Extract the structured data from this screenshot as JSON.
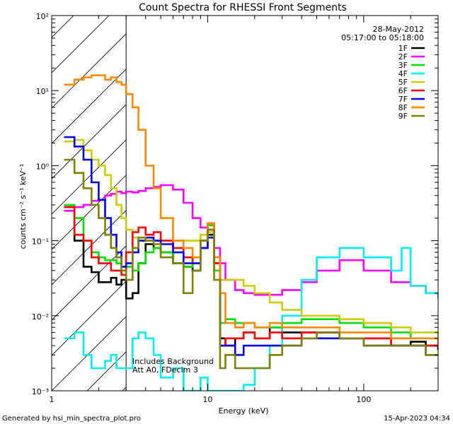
{
  "chart_data": {
    "type": "line",
    "title": "Count Spectra for RHESSI Front Segments",
    "xlabel": "Energy (keV)",
    "ylabel": "counts cm⁻² s⁻¹ keV⁻¹",
    "x_scale": "log",
    "y_scale": "log",
    "xlim": [
      1,
      300
    ],
    "ylim": [
      0.001,
      100
    ],
    "x_tick_labels": [
      "1",
      "10",
      "100"
    ],
    "y_tick_labels": [
      "10⁻³",
      "10⁻²",
      "10⁻¹",
      "10⁰",
      "10¹",
      "10²"
    ],
    "date": "28-May-2012",
    "time_range": "05:17:00 to 05:18:00",
    "annotations": [
      "Includes Background",
      "Att A0, FDecim 3"
    ],
    "footer_left": "Generated by hsi_min_spectra_plot.pro",
    "footer_right": "15-Apr-2023 04:34",
    "legend_position": "top-right",
    "excluded_region_keV": [
      1,
      3
    ],
    "series": [
      {
        "name": "1F",
        "color": "#000000",
        "x": [
          1.2,
          1.4,
          1.6,
          1.8,
          2.0,
          2.2,
          2.4,
          2.6,
          2.8,
          3.0,
          3.3,
          3.6,
          4.0,
          4.5,
          5.0,
          6.0,
          7.0,
          8.0,
          9.0,
          10.0,
          11.0,
          12.0,
          13.0,
          15.0,
          17.0,
          20.0,
          25.0,
          30.0,
          40.0,
          50.0,
          70.0,
          100.0,
          150.0,
          200.0,
          250.0,
          300.0
        ],
        "y": [
          0.28,
          0.1,
          0.045,
          0.038,
          0.028,
          0.028,
          0.032,
          0.026,
          0.03,
          0.017,
          0.02,
          0.05,
          0.09,
          0.08,
          0.07,
          0.05,
          0.045,
          0.04,
          0.08,
          0.12,
          0.05,
          0.005,
          0.004,
          0.005,
          0.006,
          0.005,
          0.007,
          0.006,
          0.006,
          0.006,
          0.005,
          0.005,
          0.004,
          0.0045,
          0.004,
          0.0035
        ]
      },
      {
        "name": "2F",
        "color": "#ff00ff",
        "x": [
          1.2,
          1.4,
          1.6,
          1.8,
          2.0,
          2.2,
          2.4,
          2.6,
          2.8,
          3.0,
          3.3,
          3.6,
          4.0,
          4.5,
          5.0,
          6.0,
          7.0,
          8.0,
          9.0,
          10.0,
          11.0,
          12.0,
          13.0,
          15.0,
          17.0,
          20.0,
          25.0,
          30.0,
          40.0,
          50.0,
          70.0,
          100.0,
          150.0,
          200.0,
          250.0,
          300.0
        ],
        "y": [
          0.25,
          0.28,
          0.3,
          0.34,
          0.35,
          0.4,
          0.42,
          0.45,
          0.43,
          0.45,
          0.44,
          0.46,
          0.5,
          0.52,
          0.55,
          0.48,
          0.32,
          0.2,
          0.15,
          0.14,
          0.08,
          0.05,
          0.03,
          0.022,
          0.02,
          0.019,
          0.019,
          0.022,
          0.028,
          0.04,
          0.055,
          0.04,
          0.028,
          0.025,
          0.02,
          0.018
        ]
      },
      {
        "name": "3F",
        "color": "#00dd00",
        "x": [
          1.2,
          1.4,
          1.6,
          1.8,
          2.0,
          2.2,
          2.4,
          2.6,
          2.8,
          3.0,
          3.3,
          3.6,
          4.0,
          4.5,
          5.0,
          6.0,
          7.0,
          8.0,
          9.0,
          10.0,
          11.0,
          12.0,
          13.0,
          15.0,
          17.0,
          20.0,
          25.0,
          30.0,
          40.0,
          50.0,
          70.0,
          100.0,
          150.0,
          200.0,
          250.0,
          300.0
        ],
        "y": [
          0.3,
          0.2,
          0.1,
          0.07,
          0.06,
          0.055,
          0.055,
          0.05,
          0.045,
          0.045,
          0.04,
          0.05,
          0.07,
          0.08,
          0.07,
          0.05,
          0.045,
          0.06,
          0.1,
          0.16,
          0.04,
          0.008,
          0.009,
          0.008,
          0.008,
          0.007,
          0.007,
          0.008,
          0.009,
          0.009,
          0.008,
          0.007,
          0.006,
          0.005,
          0.005,
          0.004
        ]
      },
      {
        "name": "4F",
        "color": "#00eeee",
        "x": [
          1.2,
          1.4,
          1.6,
          1.8,
          2.0,
          2.2,
          2.4,
          2.6,
          2.8,
          3.0,
          3.3,
          3.6,
          4.0,
          4.5,
          5.0,
          6.0,
          7.0,
          8.0,
          9.0,
          10.0,
          11.0,
          12.0,
          13.0,
          15.0,
          17.0,
          20.0,
          25.0,
          30.0,
          40.0,
          50.0,
          70.0,
          100.0,
          150.0,
          175.0,
          200.0,
          250.0,
          300.0
        ],
        "y": [
          0.005,
          0.006,
          0.003,
          0.002,
          0.002,
          0.0025,
          0.003,
          0.002,
          0.002,
          0.002,
          0.005,
          0.006,
          0.005,
          0.003,
          0.0015,
          0.002,
          0.001,
          0.001,
          0.0015,
          0.001,
          0.001,
          0.001,
          0.001,
          0.001,
          0.0012,
          0.002,
          0.004,
          0.01,
          0.03,
          0.06,
          0.08,
          0.06,
          0.04,
          0.08,
          0.025,
          0.02,
          0.017
        ]
      },
      {
        "name": "5F",
        "color": "#cccc00",
        "x": [
          1.2,
          1.4,
          1.6,
          1.8,
          2.0,
          2.2,
          2.4,
          2.6,
          2.8,
          3.0,
          3.3,
          3.6,
          4.0,
          4.5,
          5.0,
          6.0,
          7.0,
          8.0,
          9.0,
          10.0,
          11.0,
          12.0,
          13.0,
          15.0,
          17.0,
          20.0,
          25.0,
          30.0,
          40.0,
          50.0,
          70.0,
          100.0,
          150.0,
          200.0,
          250.0,
          300.0
        ],
        "y": [
          2.1,
          2.2,
          1.6,
          1.2,
          1.0,
          0.75,
          0.5,
          0.3,
          0.2,
          0.14,
          0.11,
          0.1,
          0.1,
          0.1,
          0.1,
          0.1,
          0.1,
          0.1,
          0.12,
          0.13,
          0.05,
          0.03,
          0.03,
          0.03,
          0.025,
          0.02,
          0.015,
          0.012,
          0.01,
          0.01,
          0.009,
          0.008,
          0.007,
          0.006,
          0.006,
          0.005
        ]
      },
      {
        "name": "6F",
        "color": "#ff0000",
        "x": [
          1.2,
          1.4,
          1.6,
          1.8,
          2.0,
          2.2,
          2.4,
          2.6,
          2.8,
          3.0,
          3.3,
          3.6,
          4.0,
          4.5,
          5.0,
          6.0,
          7.0,
          8.0,
          9.0,
          10.0,
          11.0,
          12.0,
          13.0,
          15.0,
          17.0,
          20.0,
          25.0,
          30.0,
          40.0,
          50.0,
          70.0,
          100.0,
          150.0,
          200.0,
          250.0,
          300.0
        ],
        "y": [
          0.28,
          0.12,
          0.1,
          0.06,
          0.05,
          0.05,
          0.04,
          0.04,
          0.035,
          0.07,
          0.13,
          0.15,
          0.12,
          0.13,
          0.1,
          0.08,
          0.06,
          0.05,
          0.1,
          0.17,
          0.05,
          0.004,
          0.005,
          0.005,
          0.006,
          0.005,
          0.006,
          0.005,
          0.006,
          0.006,
          0.005,
          0.005,
          0.004,
          0.004,
          0.004,
          0.004
        ]
      },
      {
        "name": "7F",
        "color": "#0000ee",
        "x": [
          1.2,
          1.4,
          1.6,
          1.8,
          2.0,
          2.2,
          2.4,
          2.6,
          2.8,
          3.0,
          3.3,
          3.6,
          4.0,
          4.5,
          5.0,
          6.0,
          7.0,
          8.0,
          9.0,
          10.0,
          11.0,
          12.0,
          13.0,
          15.0,
          17.0,
          20.0,
          25.0,
          30.0,
          40.0,
          50.0,
          70.0,
          100.0,
          150.0,
          200.0,
          250.0,
          300.0
        ],
        "y": [
          2.4,
          1.8,
          1.2,
          0.6,
          0.35,
          0.2,
          0.12,
          0.07,
          0.045,
          0.05,
          0.07,
          0.1,
          0.11,
          0.1,
          0.09,
          0.07,
          0.05,
          0.05,
          0.08,
          0.11,
          0.06,
          0.004,
          0.004,
          0.003,
          0.004,
          0.004,
          0.004,
          0.004,
          0.005,
          0.005,
          0.005,
          0.004,
          0.004,
          0.004,
          0.003,
          0.003
        ]
      },
      {
        "name": "8F",
        "color": "#ff8800",
        "x": [
          1.2,
          1.4,
          1.6,
          1.8,
          2.0,
          2.2,
          2.4,
          2.6,
          2.8,
          3.0,
          3.3,
          3.6,
          4.0,
          4.5,
          5.0,
          6.0,
          7.0,
          8.0,
          9.0,
          10.0,
          11.0,
          12.0,
          13.0,
          15.0,
          17.0,
          20.0,
          25.0,
          30.0,
          40.0,
          50.0,
          70.0,
          100.0,
          150.0,
          200.0,
          250.0,
          300.0
        ],
        "y": [
          12.0,
          14.0,
          15.0,
          16.0,
          16.0,
          14.0,
          15.0,
          13.0,
          12.0,
          9.0,
          6.0,
          3.0,
          1.0,
          0.5,
          0.2,
          0.1,
          0.08,
          0.06,
          0.1,
          0.17,
          0.06,
          0.02,
          0.008,
          0.007,
          0.008,
          0.007,
          0.008,
          0.007,
          0.007,
          0.007,
          0.006,
          0.006,
          0.005,
          0.005,
          0.005,
          0.004
        ]
      },
      {
        "name": "9F",
        "color": "#808000",
        "x": [
          1.2,
          1.4,
          1.6,
          1.8,
          2.0,
          2.2,
          2.4,
          2.6,
          2.8,
          3.0,
          3.3,
          3.6,
          4.0,
          4.5,
          5.0,
          6.0,
          7.0,
          8.0,
          9.0,
          10.0,
          11.0,
          12.0,
          13.0,
          15.0,
          17.0,
          20.0,
          25.0,
          30.0,
          40.0,
          50.0,
          70.0,
          100.0,
          150.0,
          200.0,
          250.0,
          300.0
        ],
        "y": [
          1.2,
          0.8,
          0.5,
          0.3,
          0.2,
          0.12,
          0.08,
          0.06,
          0.04,
          0.03,
          0.08,
          0.11,
          0.1,
          0.09,
          0.06,
          0.05,
          0.02,
          0.04,
          0.1,
          0.14,
          0.03,
          0.002,
          0.003,
          0.002,
          0.002,
          0.002,
          0.003,
          0.004,
          0.005,
          0.006,
          0.005,
          0.004,
          0.004,
          0.004,
          0.003,
          0.003
        ]
      }
    ]
  }
}
